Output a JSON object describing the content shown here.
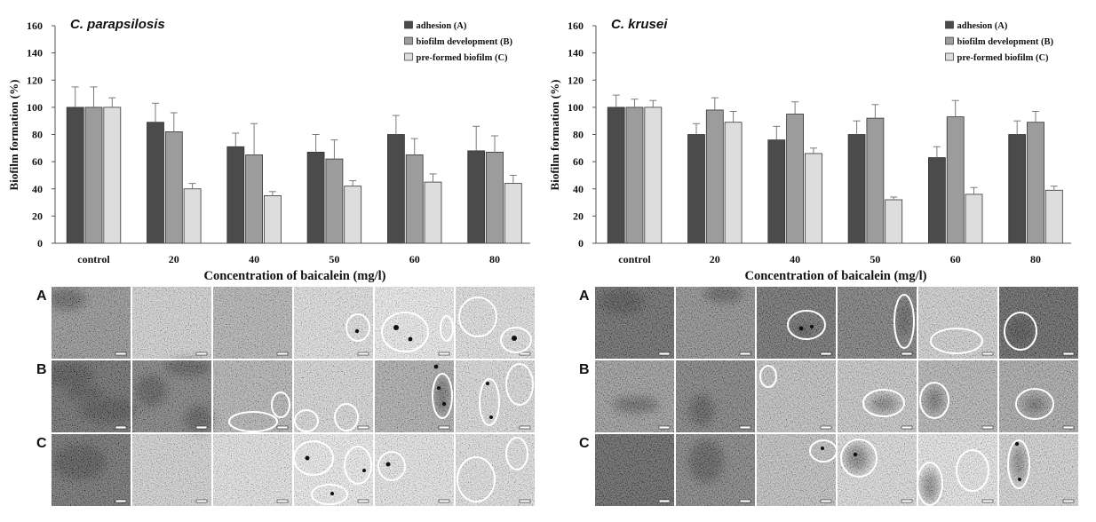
{
  "chart_data": [
    {
      "type": "bar",
      "title": "C. parapsilosis",
      "xlabel": "Concentration of baicalein (mg/l)",
      "ylabel": "Biofilm formation (%)",
      "ylim": [
        0,
        160
      ],
      "yticks": [
        0,
        20,
        40,
        60,
        80,
        100,
        120,
        140,
        160
      ],
      "categories": [
        "control",
        "20",
        "40",
        "50",
        "60",
        "80"
      ],
      "legend": "top-right",
      "grid": false,
      "series": [
        {
          "name": "adhesion (A)",
          "color": "#4b4b4b",
          "values": [
            100,
            89,
            71,
            67,
            80,
            68
          ],
          "errors": [
            15,
            14,
            10,
            13,
            14,
            18
          ]
        },
        {
          "name": "biofilm development (B)",
          "color": "#9c9c9c",
          "values": [
            100,
            82,
            65,
            62,
            65,
            67
          ],
          "errors": [
            15,
            14,
            23,
            14,
            12,
            12
          ]
        },
        {
          "name": "pre-formed biofilm (C)",
          "color": "#dddddd",
          "values": [
            100,
            40,
            35,
            42,
            45,
            44
          ],
          "errors": [
            7,
            4,
            3,
            4,
            6,
            6
          ]
        }
      ]
    },
    {
      "type": "bar",
      "title": "C. krusei",
      "xlabel": "Concentration of baicalein (mg/l)",
      "ylabel": "Biofilm formation (%)",
      "ylim": [
        0,
        160
      ],
      "yticks": [
        0,
        20,
        40,
        60,
        80,
        100,
        120,
        140,
        160
      ],
      "categories": [
        "control",
        "20",
        "40",
        "50",
        "60",
        "80"
      ],
      "legend": "top-right",
      "grid": false,
      "series": [
        {
          "name": "adhesion (A)",
          "color": "#4b4b4b",
          "values": [
            100,
            80,
            76,
            80,
            63,
            80
          ],
          "errors": [
            9,
            8,
            10,
            10,
            8,
            10
          ]
        },
        {
          "name": "biofilm development (B)",
          "color": "#9c9c9c",
          "values": [
            100,
            98,
            95,
            92,
            93,
            89
          ],
          "errors": [
            6,
            9,
            9,
            10,
            12,
            8
          ]
        },
        {
          "name": "pre-formed biofilm (C)",
          "color": "#dddddd",
          "values": [
            100,
            89,
            66,
            32,
            36,
            39
          ],
          "errors": [
            5,
            8,
            4,
            2,
            5,
            3
          ]
        }
      ]
    }
  ],
  "micrographs": [
    {
      "row_labels": [
        "A",
        "B",
        "C"
      ]
    },
    {
      "row_labels": [
        "A",
        "B",
        "C"
      ]
    }
  ]
}
